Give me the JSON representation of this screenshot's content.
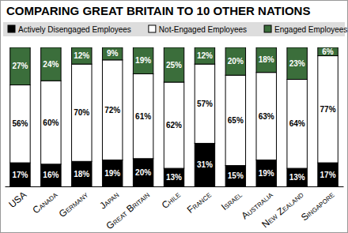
{
  "chart_data": {
    "type": "bar",
    "title": "COMPARING GREAT BRITAIN TO 10 OTHER NATIONS",
    "categories": [
      "USA",
      "Canada",
      "Germany",
      "Japan",
      "Great Britain",
      "Chile",
      "France",
      "Israel",
      "Australia",
      "New Zealand",
      "Singapore"
    ],
    "series": [
      {
        "name": "Actively Disengaged Employees",
        "color": "#000000",
        "values": [
          17,
          16,
          18,
          19,
          20,
          13,
          31,
          15,
          19,
          13,
          17
        ],
        "value_labels": [
          "17%",
          "16%",
          "18%",
          "19%",
          "20%",
          "13%",
          "31%",
          "15%",
          "19%",
          "13%",
          "17%"
        ]
      },
      {
        "name": "Not-Engaged Employees",
        "color": "#ffffff",
        "values": [
          56,
          60,
          70,
          72,
          61,
          62,
          57,
          65,
          63,
          64,
          77
        ],
        "value_labels": [
          "56%",
          "60%",
          "70%",
          "72%",
          "61%",
          "62%",
          "57%",
          "65%",
          "63%",
          "64%",
          "77%"
        ]
      },
      {
        "name": "Engaged Employees",
        "color": "#3b6e3b",
        "values": [
          27,
          24,
          12,
          9,
          19,
          25,
          12,
          20,
          18,
          23,
          6
        ],
        "value_labels": [
          "27%",
          "24%",
          "12%",
          "9%",
          "19%",
          "25%",
          "12%",
          "20%",
          "18%",
          "23%",
          "6%"
        ]
      }
    ],
    "ylim": [
      0,
      100
    ],
    "stacked": true,
    "data_labels": true,
    "legend": "top",
    "tick_labels": "x"
  }
}
